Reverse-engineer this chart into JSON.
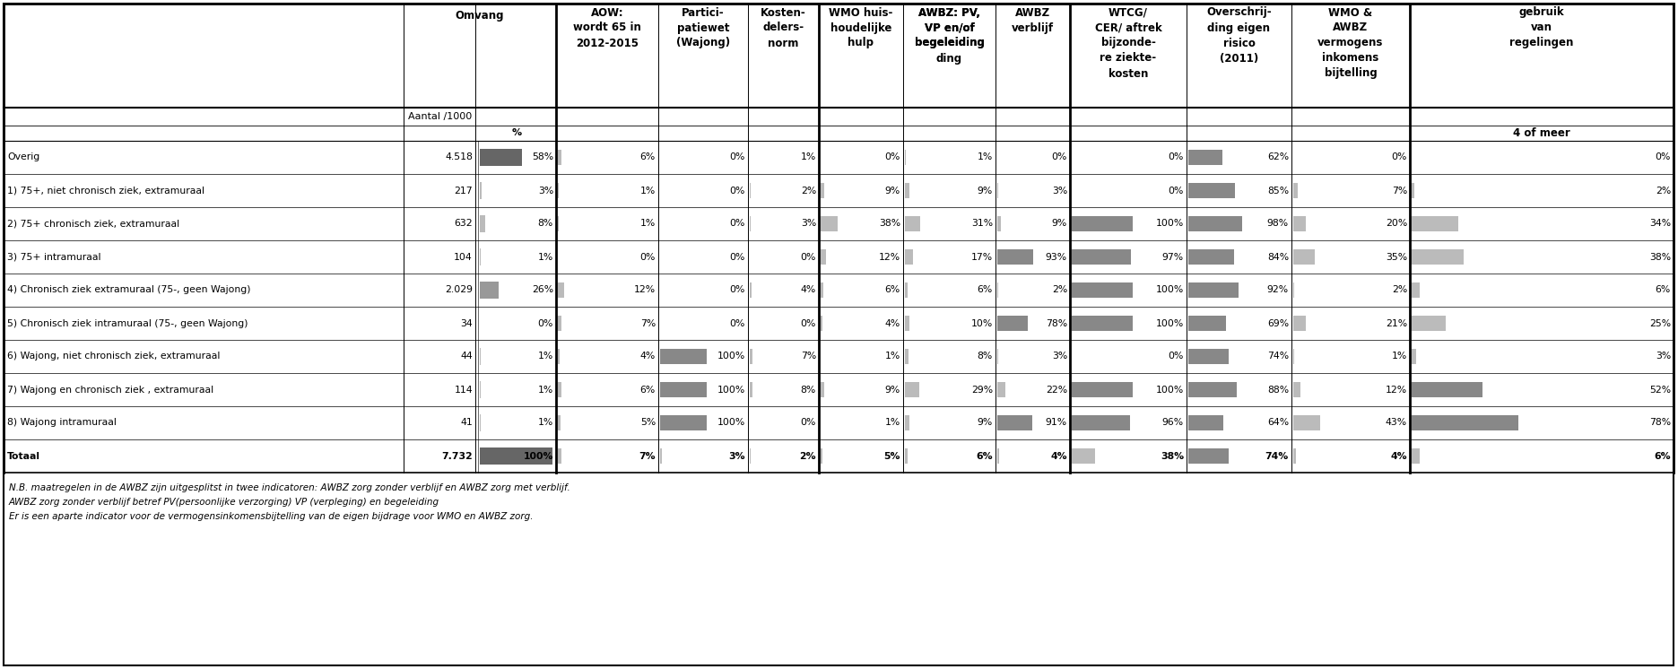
{
  "rows": [
    {
      "label": "Overig",
      "aantal": "4.518",
      "pct_val": 58,
      "pct_txt": "58%",
      "aow_val": 6,
      "aow": "6%",
      "partici_val": 0,
      "partici": "0%",
      "kosten_val": 1,
      "kosten": "1%",
      "wmo_huis_val": 0,
      "wmo_huis": "0%",
      "awbz_pv_val": 1,
      "awbz_pv": "1%",
      "awbz_verblijf_val": 0,
      "awbz_verblijf": "0%",
      "wtcg_val": 0,
      "wtcg": "0%",
      "eigen_val": 62,
      "eigen": "62%",
      "wmo_awbz_val": 0,
      "wmo_awbz": "0%",
      "gebruik_val": 0,
      "gebruik": "0%"
    },
    {
      "label": "1) 75+, niet chronisch ziek, extramuraal",
      "aantal": "217",
      "pct_val": 3,
      "pct_txt": "3%",
      "aow_val": 1,
      "aow": "1%",
      "partici_val": 0,
      "partici": "0%",
      "kosten_val": 2,
      "kosten": "2%",
      "wmo_huis_val": 9,
      "wmo_huis": "9%",
      "awbz_pv_val": 9,
      "awbz_pv": "9%",
      "awbz_verblijf_val": 3,
      "awbz_verblijf": "3%",
      "wtcg_val": 0,
      "wtcg": "0%",
      "eigen_val": 85,
      "eigen": "85%",
      "wmo_awbz_val": 7,
      "wmo_awbz": "7%",
      "gebruik_val": 2,
      "gebruik": "2%"
    },
    {
      "label": "2) 75+ chronisch ziek, extramuraal",
      "aantal": "632",
      "pct_val": 8,
      "pct_txt": "8%",
      "aow_val": 1,
      "aow": "1%",
      "partici_val": 0,
      "partici": "0%",
      "kosten_val": 3,
      "kosten": "3%",
      "wmo_huis_val": 38,
      "wmo_huis": "38%",
      "awbz_pv_val": 31,
      "awbz_pv": "31%",
      "awbz_verblijf_val": 9,
      "awbz_verblijf": "9%",
      "wtcg_val": 100,
      "wtcg": "100%",
      "eigen_val": 98,
      "eigen": "98%",
      "wmo_awbz_val": 20,
      "wmo_awbz": "20%",
      "gebruik_val": 34,
      "gebruik": "34%"
    },
    {
      "label": "3) 75+ intramuraal",
      "aantal": "104",
      "pct_val": 1,
      "pct_txt": "1%",
      "aow_val": 0,
      "aow": "0%",
      "partici_val": 0,
      "partici": "0%",
      "kosten_val": 0,
      "kosten": "0%",
      "wmo_huis_val": 12,
      "wmo_huis": "12%",
      "awbz_pv_val": 17,
      "awbz_pv": "17%",
      "awbz_verblijf_val": 93,
      "awbz_verblijf": "93%",
      "wtcg_val": 97,
      "wtcg": "97%",
      "eigen_val": 84,
      "eigen": "84%",
      "wmo_awbz_val": 35,
      "wmo_awbz": "35%",
      "gebruik_val": 38,
      "gebruik": "38%"
    },
    {
      "label": "4) Chronisch ziek extramuraal (75-, geen Wajong)",
      "aantal": "2.029",
      "pct_val": 26,
      "pct_txt": "26%",
      "aow_val": 12,
      "aow": "12%",
      "partici_val": 0,
      "partici": "0%",
      "kosten_val": 4,
      "kosten": "4%",
      "wmo_huis_val": 6,
      "wmo_huis": "6%",
      "awbz_pv_val": 6,
      "awbz_pv": "6%",
      "awbz_verblijf_val": 2,
      "awbz_verblijf": "2%",
      "wtcg_val": 100,
      "wtcg": "100%",
      "eigen_val": 92,
      "eigen": "92%",
      "wmo_awbz_val": 2,
      "wmo_awbz": "2%",
      "gebruik_val": 6,
      "gebruik": "6%"
    },
    {
      "label": "5) Chronisch ziek intramuraal (75-, geen Wajong)",
      "aantal": "34",
      "pct_val": 0,
      "pct_txt": "0%",
      "aow_val": 7,
      "aow": "7%",
      "partici_val": 0,
      "partici": "0%",
      "kosten_val": 0,
      "kosten": "0%",
      "wmo_huis_val": 4,
      "wmo_huis": "4%",
      "awbz_pv_val": 10,
      "awbz_pv": "10%",
      "awbz_verblijf_val": 78,
      "awbz_verblijf": "78%",
      "wtcg_val": 100,
      "wtcg": "100%",
      "eigen_val": 69,
      "eigen": "69%",
      "wmo_awbz_val": 21,
      "wmo_awbz": "21%",
      "gebruik_val": 25,
      "gebruik": "25%"
    },
    {
      "label": "6) Wajong, niet chronisch ziek, extramuraal",
      "aantal": "44",
      "pct_val": 1,
      "pct_txt": "1%",
      "aow_val": 4,
      "aow": "4%",
      "partici_val": 100,
      "partici": "100%",
      "kosten_val": 7,
      "kosten": "7%",
      "wmo_huis_val": 1,
      "wmo_huis": "1%",
      "awbz_pv_val": 8,
      "awbz_pv": "8%",
      "awbz_verblijf_val": 3,
      "awbz_verblijf": "3%",
      "wtcg_val": 0,
      "wtcg": "0%",
      "eigen_val": 74,
      "eigen": "74%",
      "wmo_awbz_val": 1,
      "wmo_awbz": "1%",
      "gebruik_val": 3,
      "gebruik": "3%"
    },
    {
      "label": "7) Wajong en chronisch ziek , extramuraal",
      "aantal": "114",
      "pct_val": 1,
      "pct_txt": "1%",
      "aow_val": 6,
      "aow": "6%",
      "partici_val": 100,
      "partici": "100%",
      "kosten_val": 8,
      "kosten": "8%",
      "wmo_huis_val": 9,
      "wmo_huis": "9%",
      "awbz_pv_val": 29,
      "awbz_pv": "29%",
      "awbz_verblijf_val": 22,
      "awbz_verblijf": "22%",
      "wtcg_val": 100,
      "wtcg": "100%",
      "eigen_val": 88,
      "eigen": "88%",
      "wmo_awbz_val": 12,
      "wmo_awbz": "12%",
      "gebruik_val": 52,
      "gebruik": "52%"
    },
    {
      "label": "8) Wajong intramuraal",
      "aantal": "41",
      "pct_val": 1,
      "pct_txt": "1%",
      "aow_val": 5,
      "aow": "5%",
      "partici_val": 100,
      "partici": "100%",
      "kosten_val": 0,
      "kosten": "0%",
      "wmo_huis_val": 1,
      "wmo_huis": "1%",
      "awbz_pv_val": 9,
      "awbz_pv": "9%",
      "awbz_verblijf_val": 91,
      "awbz_verblijf": "91%",
      "wtcg_val": 96,
      "wtcg": "96%",
      "eigen_val": 64,
      "eigen": "64%",
      "wmo_awbz_val": 43,
      "wmo_awbz": "43%",
      "gebruik_val": 78,
      "gebruik": "78%"
    },
    {
      "label": "Totaal",
      "aantal": "7.732",
      "pct_val": 100,
      "pct_txt": "100%",
      "aow_val": 7,
      "aow": "7%",
      "partici_val": 3,
      "partici": "3%",
      "kosten_val": 2,
      "kosten": "2%",
      "wmo_huis_val": 5,
      "wmo_huis": "5%",
      "awbz_pv_val": 6,
      "awbz_pv": "6%",
      "awbz_verblijf_val": 4,
      "awbz_verblijf": "4%",
      "wtcg_val": 38,
      "wtcg": "38%",
      "eigen_val": 74,
      "eigen": "74%",
      "wmo_awbz_val": 4,
      "wmo_awbz": "4%",
      "gebruik_val": 6,
      "gebruik": "6%"
    }
  ],
  "footnotes": [
    "N.B. maatregelen in de AWBZ zijn uitgesplitst in twee indicatoren: AWBZ zorg zonder verblijf en AWBZ zorg met verblijf.",
    "AWBZ zorg zonder verblijf betref PV(persoonlijke verzorging) VP (verpleging) en begeleiding",
    "Er is een aparte indicator voor de vermogensinkomensbijtelling van de eigen bijdrage voor WMO en AWBZ zorg."
  ]
}
